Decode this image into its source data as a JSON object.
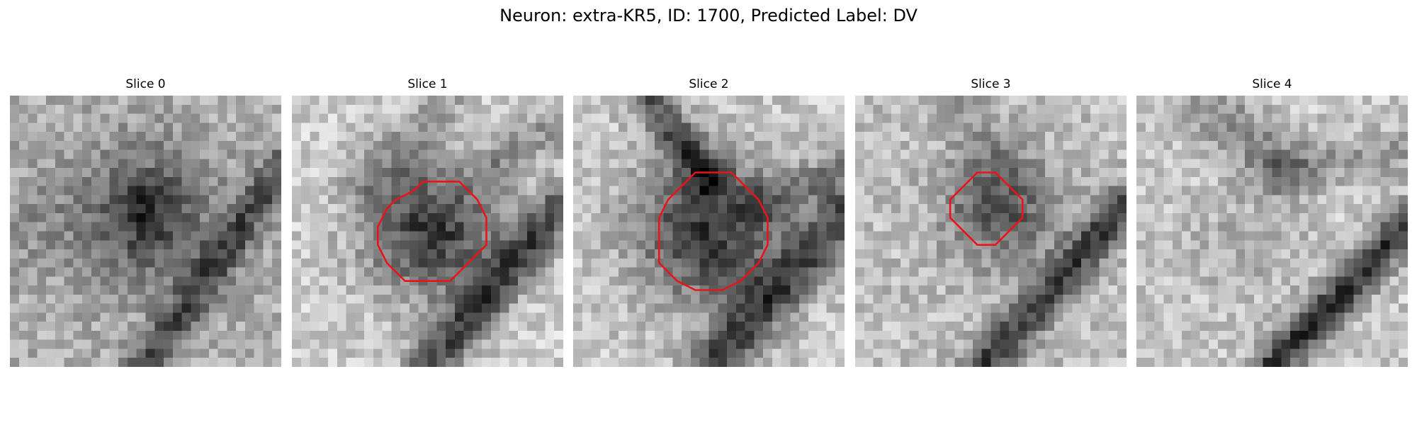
{
  "figure": {
    "title": "Neuron: extra-KR5, ID: 1700, Predicted Label: DV"
  },
  "contour_color": "#e8141a",
  "panels": [
    {
      "title": "Slice 0",
      "scene": "cell-faint-with-lower-right-band",
      "has_contour": false
    },
    {
      "title": "Slice 1",
      "scene": "cell-dark-with-lower-diagonal-band",
      "has_contour": true
    },
    {
      "title": "Slice 2",
      "scene": "cell-dark-with-upper-and-lower-bands",
      "has_contour": true
    },
    {
      "title": "Slice 3",
      "scene": "cell-small-with-lower-band",
      "has_contour": true
    },
    {
      "title": "Slice 4",
      "scene": "diagonal-band-only",
      "has_contour": false
    }
  ]
}
